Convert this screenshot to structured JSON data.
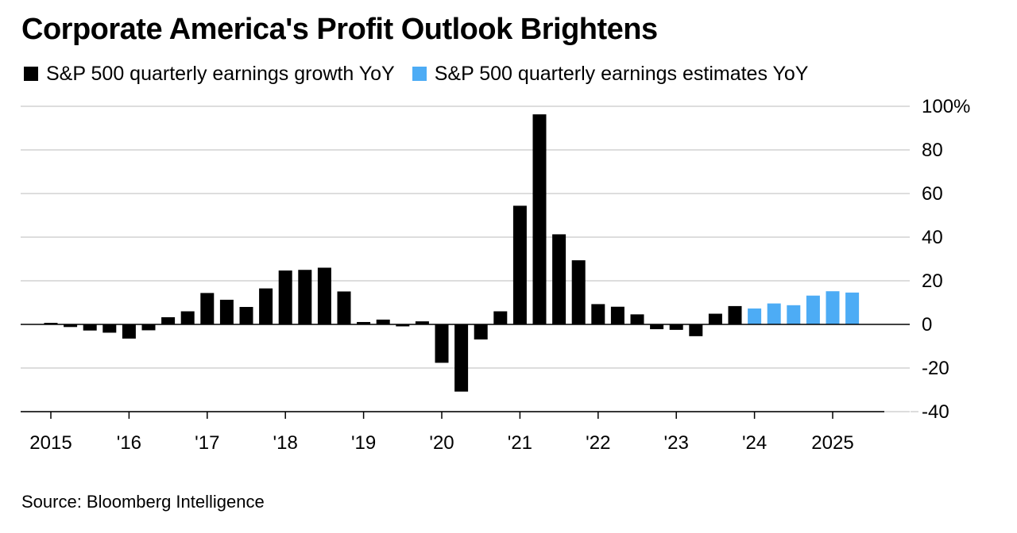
{
  "title": "Corporate America's Profit Outlook Brightens",
  "source": "Source: Bloomberg Intelligence",
  "colors": {
    "actual": "#000000",
    "estimate": "#4DACF5",
    "grid": "#dddddd"
  },
  "chart_data": {
    "type": "bar",
    "title": "Corporate America's Profit Outlook Brightens",
    "xlabel": "",
    "ylabel": "",
    "ylim": [
      -40,
      100
    ],
    "y_ticks": [
      "100%",
      "80",
      "60",
      "40",
      "20",
      "0",
      "-20",
      "-40"
    ],
    "x_ticks": [
      "2015",
      "'16",
      "'17",
      "'18",
      "'19",
      "'20",
      "'21",
      "'22",
      "'23",
      "'24",
      "2025"
    ],
    "grid": true,
    "legend_position": "top",
    "x": [
      "2015Q1",
      "2015Q2",
      "2015Q3",
      "2015Q4",
      "2016Q1",
      "2016Q2",
      "2016Q3",
      "2016Q4",
      "2017Q1",
      "2017Q2",
      "2017Q3",
      "2017Q4",
      "2018Q1",
      "2018Q2",
      "2018Q3",
      "2018Q4",
      "2019Q1",
      "2019Q2",
      "2019Q3",
      "2019Q4",
      "2020Q1",
      "2020Q2",
      "2020Q3",
      "2020Q4",
      "2021Q1",
      "2021Q2",
      "2021Q3",
      "2021Q4",
      "2022Q1",
      "2022Q2",
      "2022Q3",
      "2022Q4",
      "2023Q1",
      "2023Q2",
      "2023Q3",
      "2023Q4",
      "2024Q1",
      "2024Q2",
      "2024Q3",
      "2024Q4",
      "2025Q1",
      "2025Q2"
    ],
    "series": [
      {
        "name": "S&P 500 quarterly earnings growth YoY",
        "values": [
          0.7,
          -1.2,
          -2.8,
          -3.8,
          -6.5,
          -2.7,
          3.3,
          6,
          14.4,
          11.3,
          8,
          16.5,
          24.7,
          25,
          26,
          15.1,
          1.1,
          2.2,
          -0.9,
          1.4,
          -17.6,
          -30.8,
          -6.9,
          6,
          54.4,
          96.3,
          41.3,
          29.4,
          9.3,
          8.1,
          4.6,
          -2.2,
          -2.5,
          -5.4,
          4.9,
          8.4,
          null,
          null,
          null,
          null,
          null,
          null
        ]
      },
      {
        "name": "S&P 500 quarterly earnings estimates YoY",
        "values": [
          null,
          null,
          null,
          null,
          null,
          null,
          null,
          null,
          null,
          null,
          null,
          null,
          null,
          null,
          null,
          null,
          null,
          null,
          null,
          null,
          null,
          null,
          null,
          null,
          null,
          null,
          null,
          null,
          null,
          null,
          null,
          null,
          null,
          null,
          null,
          null,
          7.3,
          9.6,
          8.8,
          13.2,
          15.2,
          14.6
        ]
      }
    ]
  }
}
